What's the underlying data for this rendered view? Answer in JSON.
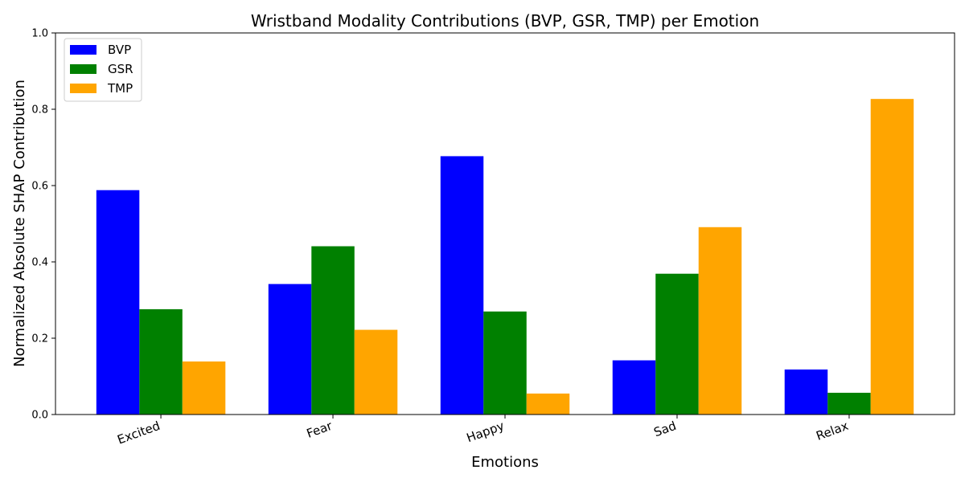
{
  "chart_data": {
    "type": "bar",
    "title": "Wristband Modality Contributions (BVP, GSR, TMP) per Emotion",
    "xlabel": "Emotions",
    "ylabel": "Normalized Absolute SHAP Contribution",
    "categories": [
      "Excited",
      "Fear",
      "Happy",
      "Sad",
      "Relax"
    ],
    "series": [
      {
        "name": "BVP",
        "color": "#0000ff",
        "values": [
          0.588,
          0.342,
          0.677,
          0.142,
          0.118
        ]
      },
      {
        "name": "GSR",
        "color": "#008000",
        "values": [
          0.276,
          0.441,
          0.27,
          0.369,
          0.057
        ]
      },
      {
        "name": "TMP",
        "color": "#ffa500",
        "values": [
          0.139,
          0.222,
          0.055,
          0.491,
          0.827
        ]
      }
    ],
    "ylim": [
      0,
      1.0
    ],
    "yticks": [
      "0.0",
      "0.2",
      "0.4",
      "0.6",
      "0.8",
      "1.0"
    ],
    "legend_position": "top-left",
    "grid": false
  }
}
